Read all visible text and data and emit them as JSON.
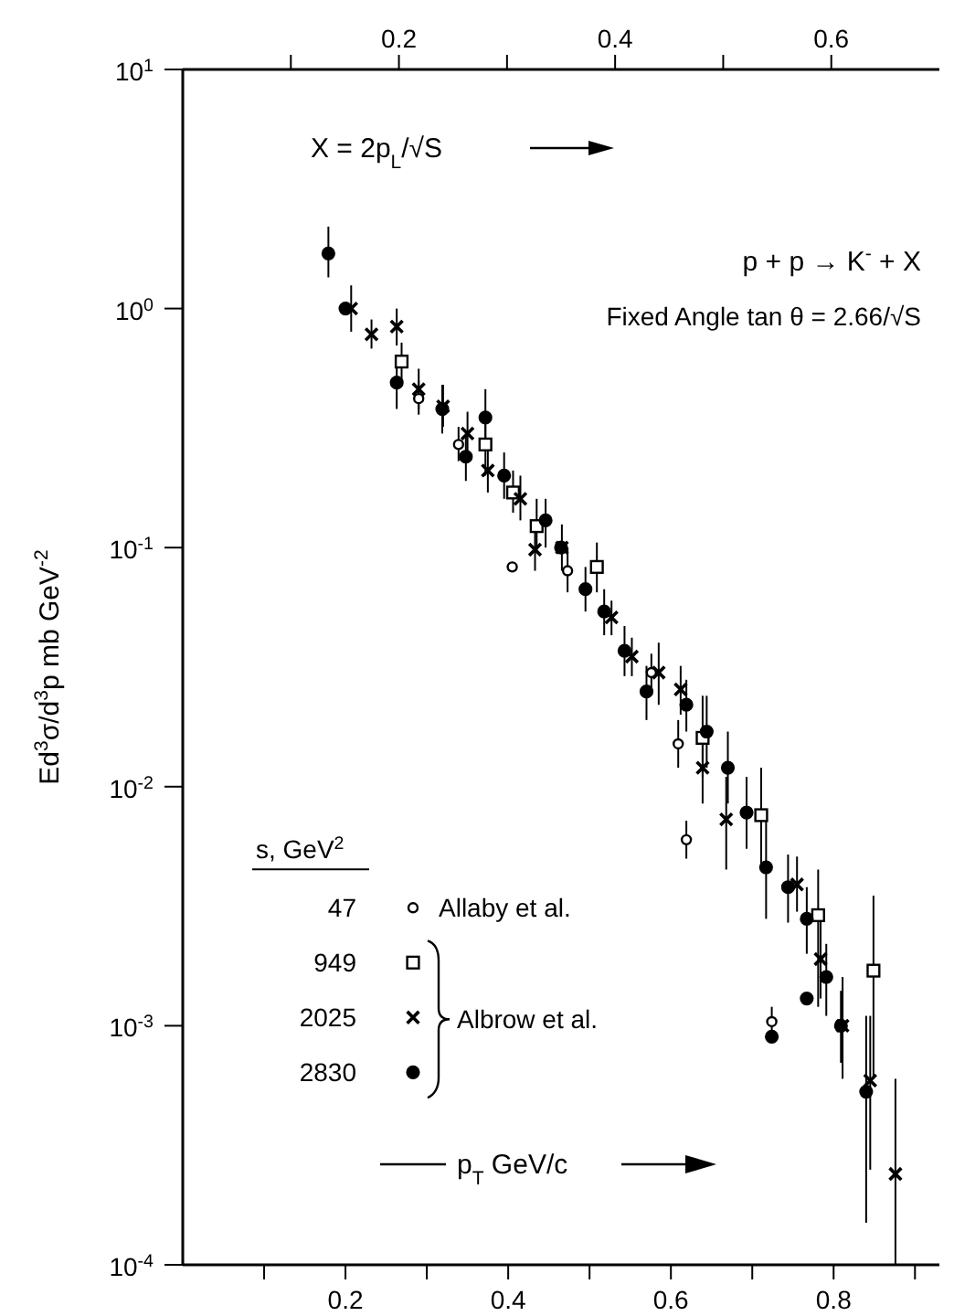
{
  "chart_data": {
    "type": "scatter",
    "xlabel": "p$_{T}$ GeV/c",
    "x2label": "X = 2p$_{L}$/√S",
    "ylabel": "Ed$^{3}$σ/d$^{3}$p mb GeV$^{-2}$",
    "legend_title": "s, GeV$^{2}$",
    "legend": "bottom left",
    "log": "y",
    "xlim": [
      0,
      0.93
    ],
    "xticks": [
      {
        "value": 0.1,
        "label": null
      },
      0.2,
      {
        "value": 0.3,
        "label": null
      },
      0.4,
      {
        "value": 0.5,
        "label": null
      },
      0.6,
      {
        "value": 0.7,
        "label": null
      },
      0.8,
      {
        "value": 0.9,
        "label": null
      }
    ],
    "x2lim": [
      0,
      0.7
    ],
    "x2ticks": [
      {
        "value": 0.1,
        "label": null
      },
      0.2,
      {
        "value": 0.3,
        "label": null
      },
      0.4,
      {
        "value": 0.5,
        "label": null
      },
      0.6
    ],
    "ylim": [
      0.0001,
      10
    ],
    "yticks": [
      {
        "value": 0.0001,
        "label": "10$^{-4}$"
      },
      {
        "value": 0.001,
        "label": "10$^{-3}$"
      },
      {
        "value": 0.01,
        "label": "10$^{-2}$"
      },
      {
        "value": 0.1,
        "label": "10$^{-1}$"
      },
      {
        "value": 1,
        "label": "10$^{0}$"
      },
      {
        "value": 10,
        "label": "10$^{1}$"
      }
    ],
    "grid": false,
    "annotations": [
      "p + p → K$^{-}$ + X",
      "Fixed Angle tan θ = 2.66/√S",
      "Allaby et al.",
      "Albrow et al."
    ],
    "series": [
      {
        "name": "47",
        "color": "#000000",
        "marker": "circle",
        "x": [
          0.29,
          0.339,
          0.405,
          0.473,
          0.576,
          0.609,
          0.619,
          0.724
        ],
        "values": [
          0.42,
          0.27,
          0.083,
          0.08,
          0.03,
          0.0151,
          0.006,
          0.00104
        ],
        "errors": [
          [
            0.36,
            0.5
          ],
          [
            0.23,
            0.32
          ],
          null,
          [
            0.065,
            0.1
          ],
          [
            0.025,
            0.036
          ],
          [
            0.012,
            0.019
          ],
          [
            0.005,
            0.0072
          ],
          [
            0.0009,
            0.0012
          ]
        ]
      },
      {
        "name": "949",
        "color": "#000000",
        "marker": "square",
        "x": [
          0.269,
          0.372,
          0.406,
          0.435,
          0.509,
          0.639,
          0.711,
          0.781,
          0.849
        ],
        "values": [
          0.6,
          0.27,
          0.17,
          0.123,
          0.083,
          0.016,
          0.0076,
          0.0029,
          0.0017
        ],
        "errors": [
          [
            0.5,
            0.72
          ],
          [
            0.2,
            0.36
          ],
          [
            0.14,
            0.21
          ],
          [
            0.095,
            0.16
          ],
          [
            0.065,
            0.105
          ],
          [
            0.011,
            0.024
          ],
          [
            0.0045,
            0.012
          ],
          [
            0.0012,
            0.0045
          ],
          [
            0.0006,
            0.0035
          ]
        ]
      },
      {
        "name": "2025",
        "color": "#000000",
        "marker": "cross",
        "x": [
          0.207,
          0.232,
          0.263,
          0.29,
          0.32,
          0.35,
          0.375,
          0.415,
          0.433,
          0.466,
          0.527,
          0.552,
          0.585,
          0.612,
          0.639,
          0.668,
          0.755,
          0.784,
          0.811,
          0.845,
          0.876
        ],
        "values": [
          1.0,
          0.78,
          0.84,
          0.46,
          0.39,
          0.3,
          0.21,
          0.16,
          0.098,
          0.1,
          0.051,
          0.035,
          0.03,
          0.0255,
          0.012,
          0.0073,
          0.0039,
          0.0019,
          0.001,
          0.00059,
          0.00024
        ],
        "errors": [
          [
            0.8,
            1.25
          ],
          [
            0.68,
            0.9
          ],
          [
            0.7,
            1.0
          ],
          [
            0.38,
            0.56
          ],
          [
            0.32,
            0.48
          ],
          [
            0.25,
            0.37
          ],
          [
            0.17,
            0.26
          ],
          [
            0.13,
            0.2
          ],
          [
            0.08,
            0.12
          ],
          [
            0.08,
            0.125
          ],
          [
            0.043,
            0.06
          ],
          [
            0.029,
            0.042
          ],
          [
            0.022,
            0.04
          ],
          [
            0.02,
            0.032
          ],
          [
            0.0085,
            0.017
          ],
          [
            0.0045,
            0.011
          ],
          [
            0.003,
            0.0051
          ],
          [
            0.0013,
            0.0028
          ],
          [
            0.0006,
            0.0016
          ],
          [
            0.00025,
            0.0011
          ],
          [
            0.0001,
            0.0006
          ]
        ]
      },
      {
        "name": "2830",
        "color": "#000000",
        "marker": "circle",
        "x": [
          0.179,
          0.2,
          0.263,
          0.319,
          0.348,
          0.372,
          0.395,
          0.446,
          0.465,
          0.495,
          0.518,
          0.543,
          0.57,
          0.619,
          0.644,
          0.67,
          0.693,
          0.717,
          0.724,
          0.744,
          0.767,
          0.767,
          0.791,
          0.809,
          0.84
        ],
        "values": [
          1.7,
          1.0,
          0.49,
          0.38,
          0.24,
          0.35,
          0.2,
          0.13,
          0.1,
          0.067,
          0.054,
          0.037,
          0.025,
          0.022,
          0.017,
          0.012,
          0.0078,
          0.0046,
          0.0009,
          0.0038,
          0.0028,
          0.0013,
          0.0016,
          0.001,
          0.00053
        ],
        "errors": [
          [
            1.35,
            2.2
          ],
          null,
          [
            0.38,
            0.62
          ],
          [
            0.3,
            0.48
          ],
          [
            0.19,
            0.3
          ],
          [
            0.26,
            0.46
          ],
          [
            0.16,
            0.25
          ],
          [
            0.1,
            0.16
          ],
          null,
          [
            0.054,
            0.083
          ],
          [
            0.043,
            0.067
          ],
          [
            0.029,
            0.047
          ],
          [
            0.019,
            0.032
          ],
          [
            0.017,
            0.028
          ],
          [
            0.012,
            0.024
          ],
          [
            0.0085,
            0.017
          ],
          [
            0.0055,
            0.011
          ],
          [
            0.0028,
            0.0075
          ],
          null,
          [
            0.0027,
            0.0052
          ],
          [
            0.002,
            0.0038
          ],
          null,
          [
            0.0011,
            0.0022
          ],
          [
            0.0007,
            0.0014
          ],
          [
            0.00015,
            0.0011
          ]
        ]
      }
    ]
  }
}
